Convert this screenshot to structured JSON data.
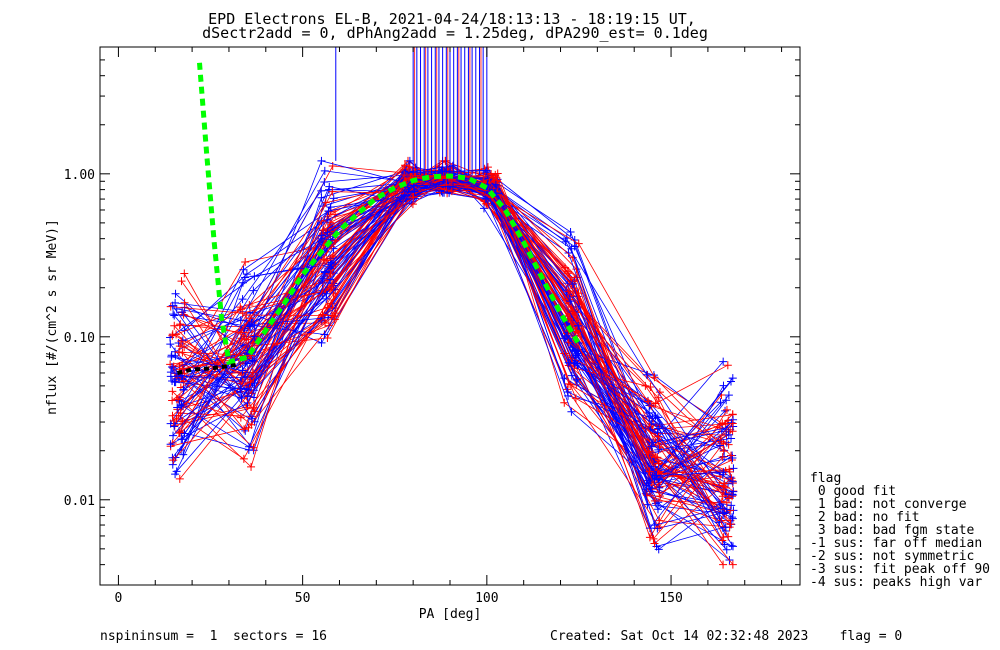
{
  "chart_data": {
    "type": "line",
    "title": "EPD Electrons EL-B, 2021-04-24/18:13:13 - 18:19:15 UT,",
    "subtitle": "dSectr2add = 0, dPhAng2add = 1.25deg, dPA290_est=   0.1deg",
    "xlabel": "PA [deg]",
    "ylabel": "nflux [#/(cm^2 s sr MeV)]",
    "xlim": [
      -5,
      185
    ],
    "ylim": [
      0.003,
      6.0
    ],
    "y_scale": "log",
    "x_ticks": [
      0,
      50,
      100,
      150
    ],
    "x_tick_labels": [
      "0",
      "50",
      "100",
      "150"
    ],
    "y_ticks": [
      0.01,
      0.1,
      1.0
    ],
    "y_tick_labels": [
      "0.01",
      "0.10",
      "1.00"
    ],
    "grid": false,
    "colors": {
      "series_a": "#0000ff",
      "series_b": "#ff0000",
      "fit": "#00ff00",
      "median": "#000000"
    },
    "pa_bins": [
      16,
      35,
      57,
      79,
      89,
      101,
      123,
      145,
      165
    ],
    "profile_median": [
      0.055,
      0.065,
      0.3,
      0.88,
      0.92,
      0.82,
      0.13,
      0.018,
      0.015
    ],
    "median_curve": {
      "x": [
        16,
        20,
        25,
        30,
        33
      ],
      "y": [
        0.06,
        0.063,
        0.064,
        0.066,
        0.068
      ]
    },
    "fit_curve": {
      "x": [
        22,
        24,
        26,
        28,
        30,
        35,
        40,
        45,
        50,
        55,
        60,
        65,
        70,
        75,
        80,
        85,
        90,
        95,
        100,
        105,
        110,
        115,
        120,
        125
      ],
      "y": [
        4.8,
        1.3,
        0.38,
        0.13,
        0.07,
        0.075,
        0.11,
        0.16,
        0.24,
        0.33,
        0.45,
        0.57,
        0.71,
        0.82,
        0.91,
        0.96,
        0.97,
        0.94,
        0.82,
        0.6,
        0.38,
        0.23,
        0.14,
        0.09
      ]
    },
    "spikes": {
      "x": [
        59,
        80,
        81,
        82,
        83,
        84,
        85,
        86,
        87,
        88,
        89,
        90,
        91,
        92,
        93,
        94,
        95,
        96,
        97,
        98,
        99,
        100
      ]
    }
  },
  "legend": {
    "header": "flag",
    "items": [
      " 0 good fit",
      " 1 bad: not converge",
      " 2 bad: no fit",
      " 3 bad: bad fgm state",
      "-1 sus: far off median",
      "-2 sus: not symmetric",
      "-3 sus: fit peak off 90",
      "-4 sus: peaks high var"
    ]
  },
  "footer": {
    "left": "nspininsum =  1  sectors = 16",
    "right": "Created: Sat Oct 14 02:32:48 2023    flag = 0"
  }
}
